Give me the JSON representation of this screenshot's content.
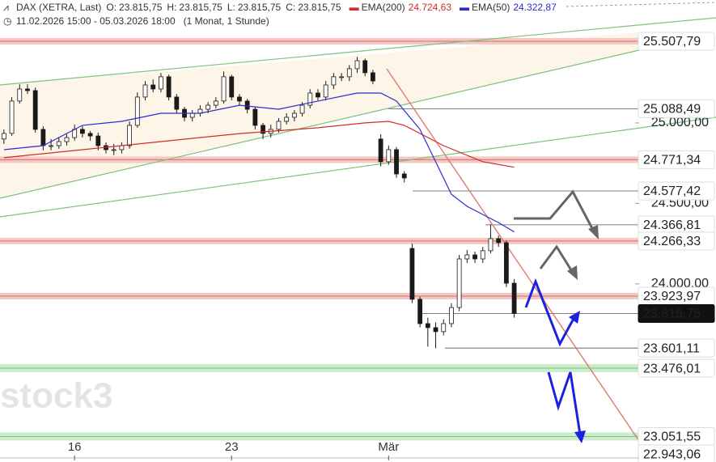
{
  "chart_data": {
    "type": "candlestick",
    "header": {
      "symbol": "DAX (XETRA, Last)",
      "ohlc": [
        {
          "name": "O:",
          "value": 23815.75,
          "label": "23.815,75"
        },
        {
          "name": "H:",
          "value": 23815.75,
          "label": "23.815,75"
        },
        {
          "name": "L:",
          "value": 23815.75,
          "label": "23.815,75"
        },
        {
          "name": "C:",
          "value": 23815.75,
          "label": "23.815,75"
        }
      ],
      "range": "11.02.2026 15:00 - 05.03.2026 18:00",
      "interval": "(1 Monat, 1 Stunde)"
    },
    "watermark": "stock3",
    "up_color": "#ffffff",
    "down_color": "#1a1a1a",
    "candles": [
      [
        24900,
        24960,
        24870,
        24935
      ],
      [
        24935,
        25160,
        24920,
        25136
      ],
      [
        25136,
        25240,
        25120,
        25211
      ],
      [
        25211,
        25240,
        25180,
        25201
      ],
      [
        25201,
        25220,
        24940,
        24960
      ],
      [
        24960,
        24980,
        24830,
        24859
      ],
      [
        24859,
        24900,
        24830,
        24859
      ],
      [
        24859,
        24910,
        24840,
        24884
      ],
      [
        24884,
        24930,
        24860,
        24909
      ],
      [
        24909,
        24990,
        24890,
        24960
      ],
      [
        24960,
        24980,
        24910,
        24935
      ],
      [
        24935,
        24950,
        24890,
        24919
      ],
      [
        24919,
        24940,
        24830,
        24859
      ],
      [
        24859,
        24880,
        24810,
        24834
      ],
      [
        24834,
        24870,
        24800,
        24834
      ],
      [
        24834,
        24880,
        24810,
        24859
      ],
      [
        24859,
        25010,
        24840,
        24985
      ],
      [
        24985,
        25190,
        24970,
        25161
      ],
      [
        25161,
        25260,
        25140,
        25236
      ],
      [
        25236,
        25270,
        25190,
        25211
      ],
      [
        25211,
        25310,
        25190,
        25287
      ],
      [
        25287,
        25300,
        25140,
        25161
      ],
      [
        25161,
        25180,
        25060,
        25085
      ],
      [
        25085,
        25100,
        25010,
        25035
      ],
      [
        25035,
        25080,
        25010,
        25060
      ],
      [
        25060,
        25110,
        25040,
        25085
      ],
      [
        25085,
        25130,
        25060,
        25110
      ],
      [
        25110,
        25160,
        25090,
        25136
      ],
      [
        25136,
        25320,
        25120,
        25287
      ],
      [
        25287,
        25300,
        25140,
        25161
      ],
      [
        25161,
        25180,
        25110,
        25136
      ],
      [
        25136,
        25150,
        25060,
        25085
      ],
      [
        25085,
        25100,
        24960,
        24985
      ],
      [
        24985,
        25000,
        24900,
        24935
      ],
      [
        24935,
        24990,
        24910,
        24960
      ],
      [
        24960,
        25030,
        24940,
        25010
      ],
      [
        25010,
        25060,
        24990,
        25035
      ],
      [
        25035,
        25080,
        25010,
        25060
      ],
      [
        25060,
        25130,
        25040,
        25110
      ],
      [
        25110,
        25210,
        25090,
        25186
      ],
      [
        25186,
        25210,
        25140,
        25161
      ],
      [
        25161,
        25260,
        25140,
        25236
      ],
      [
        25236,
        25310,
        25210,
        25287
      ],
      [
        25287,
        25310,
        25260,
        25287
      ],
      [
        25287,
        25360,
        25260,
        25337
      ],
      [
        25337,
        25410,
        25310,
        25387
      ],
      [
        25387,
        25400,
        25290,
        25312
      ],
      [
        25312,
        25330,
        25240,
        25261
      ],
      [
        24900,
        24930,
        24730,
        24759
      ],
      [
        24759,
        24860,
        24740,
        24834
      ],
      [
        24834,
        24850,
        24660,
        24683
      ],
      [
        24683,
        24700,
        24630,
        24658
      ],
      [
        24220,
        24250,
        23880,
        23904
      ],
      [
        23904,
        23920,
        23730,
        23753
      ],
      [
        23753,
        23790,
        23610,
        23728
      ],
      [
        23728,
        23760,
        23600,
        23703
      ],
      [
        23703,
        23780,
        23680,
        23753
      ],
      [
        23753,
        23880,
        23730,
        23853
      ],
      [
        23853,
        24180,
        23830,
        24155
      ],
      [
        24155,
        24210,
        24130,
        24180
      ],
      [
        24180,
        24200,
        24130,
        24155
      ],
      [
        24155,
        24230,
        24130,
        24206
      ],
      [
        24206,
        24370,
        24190,
        24281
      ],
      [
        24281,
        24300,
        24230,
        24256
      ],
      [
        24256,
        24270,
        23980,
        24004
      ],
      [
        24004,
        24030,
        23790,
        23815.75
      ]
    ],
    "series": [
      {
        "name": "EMA(200)",
        "color": "#d42a2a",
        "last": {
          "value": 24724.63,
          "label": "24.724,63"
        },
        "x": [
          0,
          10,
          20,
          30,
          40,
          46,
          49,
          51,
          56,
          61,
          65
        ],
        "values": [
          24784,
          24834,
          24884,
          24934,
          24970,
          25000,
          25010,
          24985,
          24859,
          24759,
          24724.63
        ]
      },
      {
        "name": "EMA(50)",
        "color": "#2b2bd4",
        "last": {
          "value": 24322.87,
          "label": "24.322,87"
        },
        "x": [
          0,
          5,
          10,
          15,
          20,
          25,
          30,
          35,
          40,
          45,
          48,
          50,
          53,
          55,
          57,
          59,
          61,
          63,
          65
        ],
        "values": [
          24834,
          24859,
          24985,
          25010,
          25060,
          25060,
          25110,
          25085,
          25136,
          25186,
          25186,
          25136,
          24960,
          24759,
          24557,
          24482,
          24431,
          24381,
          24322.87
        ]
      }
    ],
    "xlim": [
      -0.5,
      80.4
    ],
    "ylim": [
      22893,
      25764
    ],
    "xticks": [
      {
        "value": 9,
        "label": "16"
      },
      {
        "value": 29,
        "label": "23"
      },
      {
        "value": 49,
        "label": "Mär"
      }
    ],
    "yticks": [
      {
        "value": 25000,
        "label": "25.000,00"
      },
      {
        "value": 24500,
        "label": "24.500,00"
      },
      {
        "value": 24000,
        "label": "24.000,00"
      }
    ],
    "levels": [
      {
        "value": 25507.79,
        "label": "25.507,79",
        "style": "red-band"
      },
      {
        "value": 25088.49,
        "label": "25.088,49",
        "style": "line"
      },
      {
        "value": 24771.34,
        "label": "24.771,34",
        "style": "red-band"
      },
      {
        "value": 24577.42,
        "label": "24.577,42",
        "style": "line"
      },
      {
        "value": 24366.81,
        "label": "24.366,81",
        "style": "line"
      },
      {
        "value": 24266.33,
        "label": "24.266,33",
        "style": "red-band"
      },
      {
        "value": 23923.97,
        "label": "23.923,97",
        "style": "red-band"
      },
      {
        "value": 23815.75,
        "label": "23.815,75",
        "style": "last"
      },
      {
        "value": 23601.11,
        "label": "23.601,11",
        "style": "line"
      },
      {
        "value": 23476.01,
        "label": "23.476,01",
        "style": "green-band"
      },
      {
        "value": 23051.55,
        "label": "23.051,55",
        "style": "green-band"
      },
      {
        "value": 22943.06,
        "label": "22.943,06",
        "style": "plain"
      }
    ]
  }
}
